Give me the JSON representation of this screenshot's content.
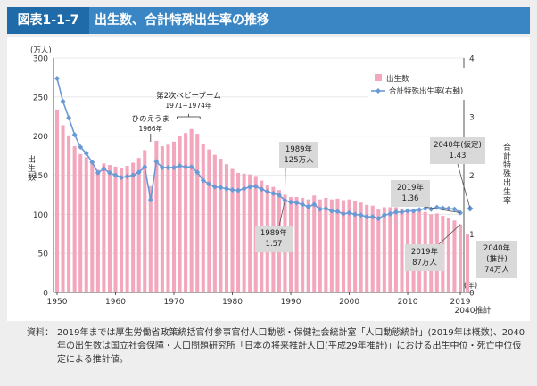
{
  "header": {
    "figure_tag": "図表1-1-7",
    "title": "出生数、合計特殊出生率の推移"
  },
  "notes": {
    "label": "資料：",
    "text": "2019年までは厚生労働省政策統括官付参事官付人口動態・保健社会統計室「人口動態統計」(2019年は概数)、2040年の出生数は国立社会保障・人口問題研究所「日本の将来推計人口(平成29年推計)」における出生中位・死亡中位仮定による推計値。"
  },
  "chart_data": {
    "type": "bar",
    "y_unit_label": "(万人)",
    "ylabel_left": "出生数",
    "ylabel_right": "合計特殊出生率",
    "x_unit_label": "(年)",
    "x_extra_label": "2040推計",
    "xlim": [
      1950,
      2019
    ],
    "ylim_left": [
      0,
      300
    ],
    "ylim_right": [
      0,
      4
    ],
    "x_ticks": [
      "1950",
      "1960",
      "1970",
      "1980",
      "1990",
      "2000",
      "2010",
      "2019"
    ],
    "y_ticks_left": [
      "0",
      "50",
      "100",
      "150",
      "200",
      "250",
      "300"
    ],
    "y_ticks_right": [
      "0",
      "1",
      "2",
      "3",
      "4"
    ],
    "legend": {
      "position": "top-right",
      "bar_label": "出生数",
      "line_label": "合計特殊出生率(右軸)"
    },
    "colors": {
      "bar": "#f3a7bd",
      "projected_bar": "#f3a7bd",
      "line": "#6a9ad6",
      "marker": "#6a9ad6",
      "callout": "#d9d9d9"
    },
    "years": [
      1950,
      1951,
      1952,
      1953,
      1954,
      1955,
      1956,
      1957,
      1958,
      1959,
      1960,
      1961,
      1962,
      1963,
      1964,
      1965,
      1966,
      1967,
      1968,
      1969,
      1970,
      1971,
      1972,
      1973,
      1974,
      1975,
      1976,
      1977,
      1978,
      1979,
      1980,
      1981,
      1982,
      1983,
      1984,
      1985,
      1986,
      1987,
      1988,
      1989,
      1990,
      1991,
      1992,
      1993,
      1994,
      1995,
      1996,
      1997,
      1998,
      1999,
      2000,
      2001,
      2002,
      2003,
      2004,
      2005,
      2006,
      2007,
      2008,
      2009,
      2010,
      2011,
      2012,
      2013,
      2014,
      2015,
      2016,
      2017,
      2018,
      2019
    ],
    "births": [
      234,
      214,
      201,
      187,
      177,
      173,
      167,
      157,
      165,
      163,
      161,
      159,
      162,
      166,
      172,
      182,
      136,
      194,
      187,
      189,
      193,
      200,
      204,
      209,
      203,
      190,
      183,
      176,
      171,
      164,
      158,
      153,
      152,
      151,
      149,
      143,
      138,
      135,
      131,
      125,
      122,
      122,
      121,
      119,
      124,
      119,
      121,
      119,
      120,
      118,
      119,
      117,
      115,
      112,
      111,
      106,
      109,
      109,
      109,
      107,
      107,
      105,
      104,
      103,
      100,
      101,
      98,
      95,
      92,
      87
    ],
    "tfr": [
      3.65,
      3.26,
      2.98,
      2.69,
      2.48,
      2.37,
      2.22,
      2.04,
      2.11,
      2.04,
      2.0,
      1.96,
      1.98,
      2.0,
      2.05,
      2.14,
      1.58,
      2.23,
      2.13,
      2.13,
      2.13,
      2.16,
      2.14,
      2.14,
      2.05,
      1.91,
      1.85,
      1.8,
      1.79,
      1.77,
      1.75,
      1.74,
      1.77,
      1.8,
      1.81,
      1.76,
      1.72,
      1.69,
      1.66,
      1.57,
      1.54,
      1.53,
      1.5,
      1.46,
      1.5,
      1.42,
      1.43,
      1.39,
      1.38,
      1.34,
      1.36,
      1.33,
      1.32,
      1.29,
      1.29,
      1.26,
      1.32,
      1.34,
      1.37,
      1.37,
      1.39,
      1.39,
      1.41,
      1.43,
      1.42,
      1.45,
      1.44,
      1.43,
      1.42,
      1.36
    ],
    "projection": {
      "year": "2040",
      "births": 74,
      "tfr": 1.43
    },
    "annotations": [
      {
        "id": "baby-boom-2",
        "text": "第2次ベビーブーム",
        "subtext": "1971~1974年"
      },
      {
        "id": "hinoeuma",
        "text": "ひのえうま",
        "subtext": "1966年"
      },
      {
        "id": "births-1989",
        "text": "1989年",
        "subtext": "125万人"
      },
      {
        "id": "tfr-1989",
        "text": "1989年",
        "subtext": "1.57"
      },
      {
        "id": "tfr-2019",
        "text": "2019年",
        "subtext": "1.36"
      },
      {
        "id": "births-2019",
        "text": "2019年",
        "subtext": "87万人"
      },
      {
        "id": "tfr-2040",
        "text": "2040年(仮定)",
        "subtext": "1.43"
      },
      {
        "id": "births-2040",
        "text": "2040年",
        "subtext": "(推計)",
        "subtext2": "74万人"
      }
    ]
  }
}
